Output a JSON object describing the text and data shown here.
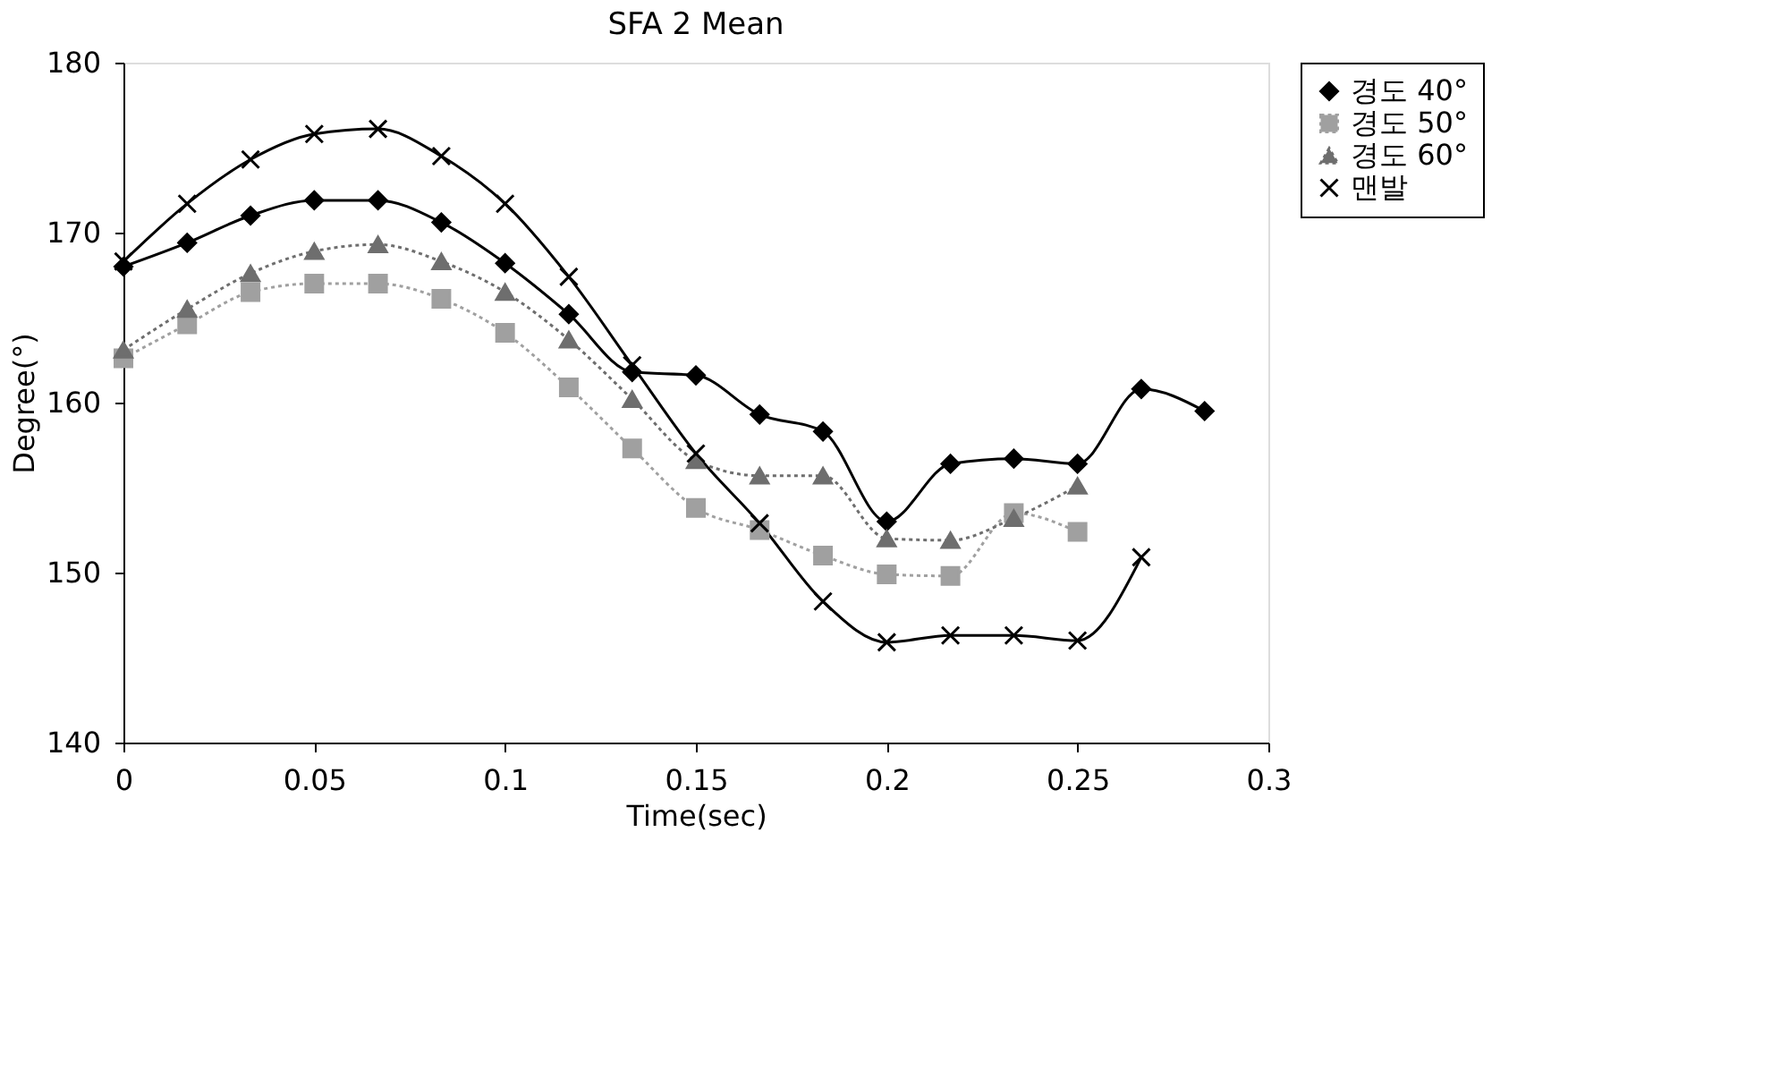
{
  "chart_data": {
    "type": "line",
    "title": "SFA 2 Mean",
    "xlabel": "Time(sec)",
    "ylabel": "Degree(°)",
    "xlim": [
      0,
      0.3
    ],
    "xticks": [
      0,
      0.05,
      0.1,
      0.15,
      0.2,
      0.25,
      0.3
    ],
    "ylim": [
      140,
      180
    ],
    "yticks": [
      140,
      150,
      160,
      170,
      180
    ],
    "grid": false,
    "legend": "right",
    "series": [
      {
        "name": "경도 40°",
        "color": "#000000",
        "marker": "diamond",
        "line_style": "solid",
        "x": [
          0,
          0.0167,
          0.0333,
          0.05,
          0.0667,
          0.0833,
          0.1,
          0.1167,
          0.1333,
          0.15,
          0.1667,
          0.1833,
          0.2,
          0.2167,
          0.2333,
          0.25,
          0.2667,
          0.2833
        ],
        "values": [
          168.0,
          169.4,
          171.0,
          171.9,
          171.9,
          170.6,
          168.2,
          165.2,
          161.8,
          161.6,
          159.3,
          158.3,
          153.0,
          156.4,
          156.7,
          156.4,
          160.8,
          159.5
        ]
      },
      {
        "name": "경도 50°",
        "color": "#a0a0a0",
        "marker": "square",
        "line_style": "dotted",
        "x": [
          0,
          0.0167,
          0.0333,
          0.05,
          0.0667,
          0.0833,
          0.1,
          0.1167,
          0.1333,
          0.15,
          0.1667,
          0.1833,
          0.2,
          0.2167,
          0.2333,
          0.25
        ],
        "values": [
          162.6,
          164.6,
          166.5,
          167.0,
          167.0,
          166.1,
          164.1,
          160.9,
          157.3,
          153.8,
          152.5,
          151.0,
          149.9,
          149.8,
          153.5,
          152.4
        ]
      },
      {
        "name": "경도 60°",
        "color": "#6e6e6e",
        "marker": "triangle",
        "line_style": "dotted",
        "x": [
          0,
          0.0167,
          0.0333,
          0.05,
          0.0667,
          0.0833,
          0.1,
          0.1167,
          0.1333,
          0.15,
          0.1667,
          0.1833,
          0.2,
          0.2167,
          0.2333,
          0.25
        ],
        "values": [
          163.1,
          165.5,
          167.6,
          168.9,
          169.3,
          168.3,
          166.5,
          163.7,
          160.2,
          156.6,
          155.7,
          155.7,
          152.0,
          151.9,
          153.2,
          155.1
        ]
      },
      {
        "name": "맨발",
        "color": "#000000",
        "marker": "cross",
        "line_style": "solid",
        "x": [
          0,
          0.0167,
          0.0333,
          0.05,
          0.0667,
          0.0833,
          0.1,
          0.1167,
          0.1333,
          0.15,
          0.1667,
          0.1833,
          0.2,
          0.2167,
          0.2333,
          0.25,
          0.2667
        ],
        "values": [
          168.3,
          171.7,
          174.3,
          175.8,
          176.1,
          174.5,
          171.7,
          167.4,
          162.2,
          157.0,
          152.9,
          148.3,
          145.9,
          146.3,
          146.3,
          146.0,
          150.9
        ]
      }
    ]
  }
}
